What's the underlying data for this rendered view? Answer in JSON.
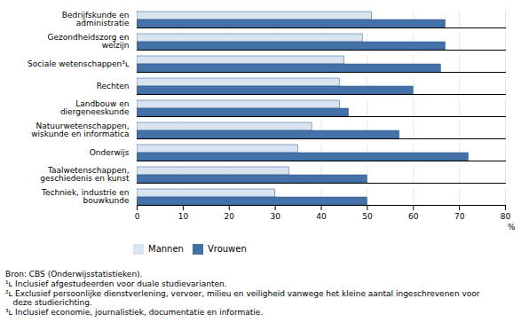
{
  "chart_data": {
    "type": "bar",
    "orientation": "horizontal",
    "categories": [
      "Techniek, industrie en\nbouwkunde",
      "Taalwetenschappen,\ngeschiedenis en kunst",
      "Onderwijs",
      "Natuurwetenschappen,\nwiskunde en informatica",
      "Landbouw en\ndiergeneeskunde",
      "Rechten",
      "Sociale wetenschappen³ʟ",
      "Gezondheidszorg en\nwelzijn",
      "Bedrijfskunde en\nadministratie"
    ],
    "series": [
      {
        "name": "Mannen",
        "color": "#d9e4f0",
        "values": [
          30,
          33,
          35,
          38,
          44,
          44,
          45,
          49,
          51
        ]
      },
      {
        "name": "Vrouwen",
        "color": "#4472a8",
        "values": [
          50,
          50,
          72,
          57,
          46,
          60,
          66,
          67,
          67
        ]
      }
    ],
    "x_label": "%",
    "xlim": [
      0,
      80
    ],
    "xticks": [
      0,
      10,
      20,
      30,
      40,
      50,
      60,
      70,
      80
    ],
    "grid": true,
    "legend": "bottom",
    "annotations": [
      "Bron: CBS (Onderwijsstatistieken).",
      "¹ʟ Inclusief afgestudeerden voor duale studievarianten.",
      "²ʟ Exclusief persoonlijke dienstverlening, vervoer, milieu en veiligheid vanwege het kleine aantal ingeschrevenen voor\n   deze studierichting.",
      "³ʟ Inclusief economie, journalistiek, documentatie en informatie."
    ]
  }
}
